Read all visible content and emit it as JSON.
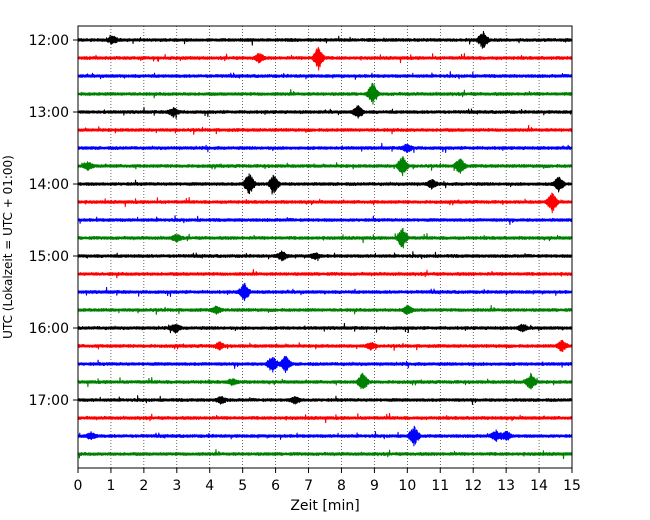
{
  "chart_data": {
    "type": "line",
    "title": "",
    "xlabel": "Zeit  [min]",
    "ylabel": "UTC (Lokalzeit = UTC + 01:00)",
    "xlim": [
      0,
      15
    ],
    "x_ticks": [
      "0",
      "1",
      "2",
      "3",
      "4",
      "5",
      "6",
      "7",
      "8",
      "9",
      "10",
      "11",
      "12",
      "13",
      "14",
      "15"
    ],
    "y_ticks": [
      "12:00",
      "13:00",
      "14:00",
      "15:00",
      "16:00",
      "17:00"
    ],
    "vertical_grid": true,
    "grid_style": "dotted",
    "trace_interval_minutes": 15,
    "start_time": "12:00",
    "color_cycle": [
      "#000000",
      "#ff0000",
      "#0000ff",
      "#008000"
    ],
    "series": [
      {
        "start": "12:00",
        "color": "#000000",
        "events": [
          [
            12.3,
            1.0
          ],
          [
            1.05,
            0.45
          ]
        ]
      },
      {
        "start": "12:15",
        "color": "#ff0000",
        "events": [
          [
            7.3,
            1.45
          ],
          [
            5.5,
            0.5
          ]
        ]
      },
      {
        "start": "12:30",
        "color": "#0000ff",
        "events": []
      },
      {
        "start": "12:45",
        "color": "#008000",
        "events": [
          [
            8.95,
            1.3
          ]
        ]
      },
      {
        "start": "13:00",
        "color": "#000000",
        "events": [
          [
            2.9,
            0.55
          ],
          [
            8.5,
            0.75
          ]
        ]
      },
      {
        "start": "13:15",
        "color": "#ff0000",
        "events": []
      },
      {
        "start": "13:30",
        "color": "#0000ff",
        "events": [
          [
            10.0,
            0.5
          ]
        ]
      },
      {
        "start": "13:45",
        "color": "#008000",
        "events": [
          [
            9.85,
            1.2
          ],
          [
            11.6,
            1.0
          ],
          [
            0.3,
            0.45
          ]
        ]
      },
      {
        "start": "14:00",
        "color": "#000000",
        "events": [
          [
            5.2,
            1.5
          ],
          [
            5.95,
            1.1
          ],
          [
            10.75,
            0.5
          ],
          [
            14.6,
            0.9
          ]
        ]
      },
      {
        "start": "14:15",
        "color": "#ff0000",
        "events": [
          [
            14.4,
            1.2
          ]
        ]
      },
      {
        "start": "14:30",
        "color": "#0000ff",
        "events": []
      },
      {
        "start": "14:45",
        "color": "#008000",
        "events": [
          [
            9.85,
            1.25
          ],
          [
            3.0,
            0.4
          ]
        ]
      },
      {
        "start": "15:00",
        "color": "#000000",
        "events": [
          [
            6.2,
            0.55
          ],
          [
            7.2,
            0.35
          ]
        ]
      },
      {
        "start": "15:15",
        "color": "#ff0000",
        "events": []
      },
      {
        "start": "15:30",
        "color": "#0000ff",
        "events": [
          [
            5.05,
            1.1
          ]
        ]
      },
      {
        "start": "15:45",
        "color": "#008000",
        "events": [
          [
            4.2,
            0.4
          ],
          [
            10.0,
            0.5
          ]
        ]
      },
      {
        "start": "16:00",
        "color": "#000000",
        "events": [
          [
            2.95,
            0.55
          ],
          [
            13.5,
            0.4
          ]
        ]
      },
      {
        "start": "16:15",
        "color": "#ff0000",
        "events": [
          [
            14.7,
            0.7
          ],
          [
            4.3,
            0.4
          ],
          [
            8.9,
            0.4
          ]
        ]
      },
      {
        "start": "16:30",
        "color": "#0000ff",
        "events": [
          [
            5.9,
            1.0
          ],
          [
            6.3,
            1.0
          ]
        ]
      },
      {
        "start": "16:45",
        "color": "#008000",
        "events": [
          [
            8.65,
            1.1
          ],
          [
            13.75,
            1.0
          ],
          [
            4.7,
            0.35
          ]
        ]
      },
      {
        "start": "17:00",
        "color": "#000000",
        "events": [
          [
            4.35,
            0.4
          ],
          [
            6.6,
            0.4
          ]
        ]
      },
      {
        "start": "17:15",
        "color": "#ff0000",
        "events": []
      },
      {
        "start": "17:30",
        "color": "#0000ff",
        "events": [
          [
            10.2,
            1.15
          ],
          [
            12.7,
            0.65
          ],
          [
            13.0,
            0.55
          ],
          [
            0.4,
            0.4
          ]
        ]
      },
      {
        "start": "17:45",
        "color": "#008000",
        "events": []
      }
    ]
  }
}
